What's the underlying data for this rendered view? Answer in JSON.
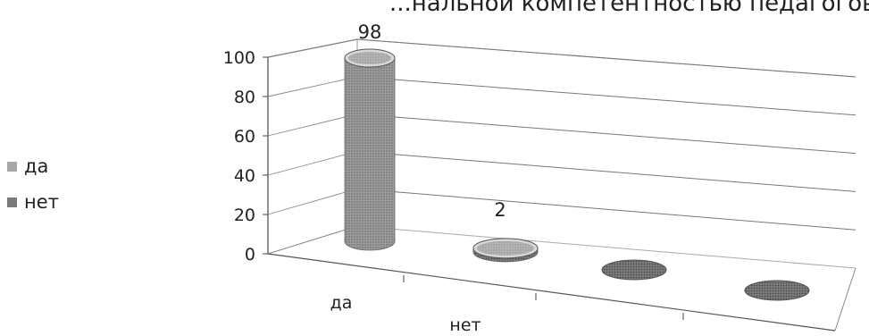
{
  "chart_data": {
    "type": "bar",
    "title": "",
    "categories": [
      "да",
      "нет",
      "",
      ""
    ],
    "series": [
      {
        "name": "да",
        "values": [
          98,
          null,
          null,
          null
        ],
        "color": "#8f8f8f"
      },
      {
        "name": "нет",
        "values": [
          null,
          2,
          null,
          null
        ],
        "color": "#6e6e6e"
      }
    ],
    "data_labels": [
      "98",
      "2"
    ],
    "ylim": [
      0,
      100
    ],
    "yticks": [
      "0",
      "20",
      "40",
      "60",
      "80",
      "100"
    ],
    "grid": true,
    "legend": "left"
  },
  "title_fragment": "...нальной компетентностью педагогов %"
}
